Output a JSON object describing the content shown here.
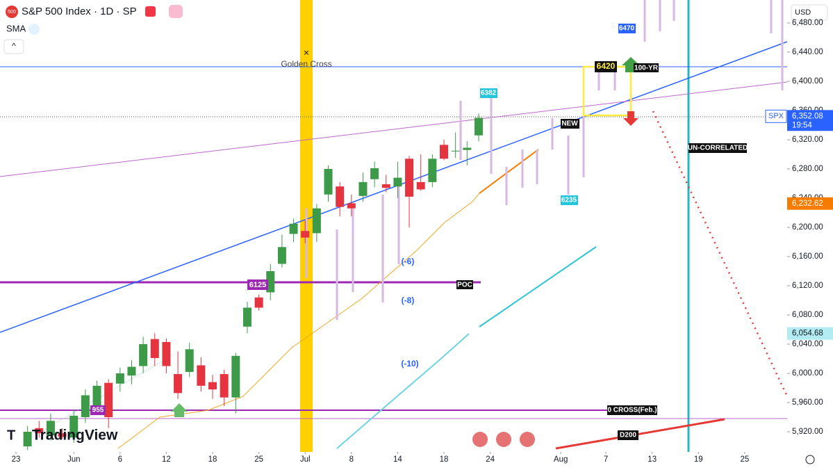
{
  "header": {
    "icon": "500",
    "title": "S&P 500 Index · 1D · SP",
    "indicator": "SMA",
    "currency": "USD"
  },
  "chart_data": {
    "type": "candlestick",
    "x": [
      1,
      2,
      3,
      4,
      5,
      6,
      7,
      8,
      9,
      10,
      11,
      12,
      13,
      14,
      15,
      16,
      17,
      18,
      19,
      20,
      21,
      22,
      23,
      24,
      25,
      26,
      27,
      28,
      29,
      30,
      31,
      32,
      33,
      34,
      35,
      36,
      37,
      38,
      39,
      40
    ],
    "open": [
      5900,
      5925,
      5915,
      5918,
      5912,
      5940,
      5955,
      5987,
      5986,
      5997,
      6010,
      6047,
      6043,
      5999,
      6002,
      6011,
      5988,
      5999,
      5967,
      6064,
      6104,
      6111,
      6150,
      6191,
      6195,
      6192,
      6245,
      6256,
      6233,
      6243,
      6266,
      6259,
      6256,
      6294,
      6262,
      6262,
      6313,
      6304,
      6306,
      6326
    ],
    "high": [
      5928,
      5935,
      5945,
      5925,
      5950,
      5978,
      5990,
      5992,
      6008,
      6018,
      6050,
      6055,
      6048,
      6030,
      6042,
      6022,
      5998,
      6005,
      6028,
      6098,
      6108,
      6150,
      6190,
      6212,
      6210,
      6232,
      6285,
      6262,
      6245,
      6275,
      6290,
      6272,
      6290,
      6298,
      6300,
      6300,
      6320,
      6330,
      6318,
      6356
    ],
    "low": [
      5895,
      5912,
      5908,
      5910,
      5905,
      5932,
      5950,
      5925,
      5975,
      5985,
      6000,
      6010,
      6000,
      5965,
      5995,
      5975,
      5965,
      5955,
      5945,
      6055,
      6086,
      6100,
      6145,
      6180,
      6178,
      6180,
      6235,
      6215,
      6215,
      6235,
      6255,
      6248,
      6240,
      6200,
      6250,
      6255,
      6292,
      6295,
      6285,
      6318
    ],
    "close": [
      5920,
      5918,
      5935,
      5913,
      5942,
      5970,
      5983,
      5940,
      6000,
      6009,
      6040,
      6021,
      6010,
      5973,
      6033,
      5983,
      5978,
      5967,
      6024,
      6090,
      6090,
      6140,
      6173,
      6205,
      6186,
      6226,
      6280,
      6228,
      6226,
      6262,
      6281,
      6254,
      6268,
      6242,
      6252,
      6294,
      6294,
      6305,
      6309,
      6350
    ],
    "up_color": "#3d9a48",
    "down_color": "#e5333f",
    "xlim": [
      -1.38,
      66.67
    ],
    "ylim": [
      5892.4,
      6511.4
    ],
    "xticks": [
      {
        "value": 0,
        "label": "23"
      },
      {
        "value": 5,
        "label": "Jun"
      },
      {
        "value": 9,
        "label": "6"
      },
      {
        "value": 13,
        "label": "12"
      },
      {
        "value": 17,
        "label": "18"
      },
      {
        "value": 21,
        "label": "25"
      },
      {
        "value": 25,
        "label": "Jul"
      },
      {
        "value": 29,
        "label": "8"
      },
      {
        "value": 33,
        "label": "14"
      },
      {
        "value": 37,
        "label": "18"
      },
      {
        "value": 41,
        "label": "24"
      },
      {
        "value": 47.1,
        "label": "Aug"
      },
      {
        "value": 51,
        "label": "7"
      },
      {
        "value": 55,
        "label": "13"
      },
      {
        "value": 59,
        "label": "19"
      },
      {
        "value": 63,
        "label": "25"
      }
    ],
    "yticks": [
      {
        "value": 5920,
        "label": "5,920.00"
      },
      {
        "value": 5960,
        "label": "5,960.00"
      },
      {
        "value": 6000,
        "label": "6,000.00"
      },
      {
        "value": 6040,
        "label": "6,040.00"
      },
      {
        "value": 6080,
        "label": "6,080.00"
      },
      {
        "value": 6120,
        "label": "6,120.00"
      },
      {
        "value": 6160,
        "label": "6,160.00"
      },
      {
        "value": 6200,
        "label": "6,200.00"
      },
      {
        "value": 6240,
        "label": "6,240.00"
      },
      {
        "value": 6280,
        "label": "6,280.00"
      },
      {
        "value": 6320,
        "label": "6,320.00"
      },
      {
        "value": 6360,
        "label": "6,360.00"
      },
      {
        "value": 6400,
        "label": "6,400.00"
      },
      {
        "value": 6440,
        "label": "6,440.00"
      },
      {
        "value": 6480,
        "label": "6,480.00"
      }
    ],
    "price_labels": [
      {
        "name": "SPX",
        "value": 6352.08,
        "label": "6,352.08",
        "time": "19:54",
        "color": "#2962ff"
      },
      {
        "value": 6232.62,
        "label": "6,232.62",
        "color": "#f57c00"
      },
      {
        "value": 6054.68,
        "label": "6,054.68",
        "color": "#b2ebf2"
      }
    ],
    "annotations": {
      "golden_cross": "Golden Cross",
      "a6382": "6382",
      "a6470": "6470",
      "a6420": "6420",
      "yr": "100-YR",
      "new": "NEW",
      "uncorrelated": "UN-CORRELATED",
      "a6235": "6235",
      "m6": "(-6)",
      "m8": "(-8)",
      "m10": "(-10)",
      "a6125": "6125",
      "poc": "POC",
      "a955": "955",
      "cross": "0 CROSS(Feb.)",
      "d200": "D200"
    }
  },
  "branding": "TradingView"
}
